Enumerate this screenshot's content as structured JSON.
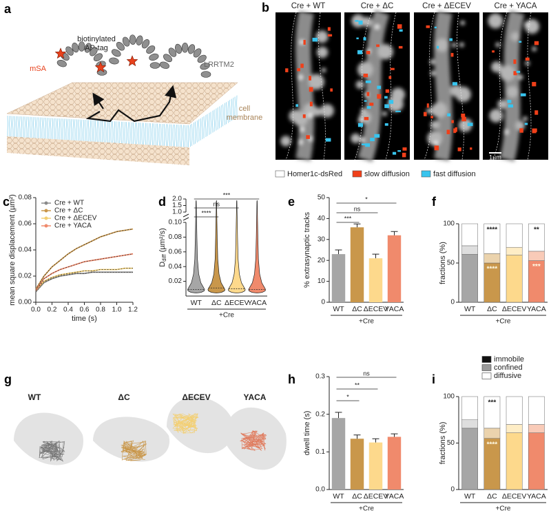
{
  "diagram": {
    "panel": "a",
    "tag": [
      "biotinylated",
      "AP-tag"
    ],
    "msa": "mSA",
    "protein": "LRRTM2",
    "membrane": [
      "cell",
      "membrane"
    ]
  },
  "micrographs": {
    "panel": "b",
    "titles": [
      "Cre + WT",
      "Cre + ΔC",
      "Cre + ΔECEV",
      "Cre + YACA"
    ],
    "legend": [
      "Homer1c-dsRed",
      "slow diffusion",
      "fast diffusion"
    ],
    "scale_bar": "1µm"
  },
  "trajectories": {
    "panel": "g",
    "titles": [
      "WT",
      "ΔC",
      "ΔECEV",
      "YACA"
    ]
  },
  "chart_data": [
    {
      "panel": "c",
      "type": "line",
      "x": [
        0,
        0.1,
        0.2,
        0.3,
        0.4,
        0.5,
        0.6,
        0.7,
        0.8,
        0.9,
        1,
        1.1,
        1.2
      ],
      "series": [
        {
          "name": "Cre + WT",
          "color": "#8a8a8a",
          "values": [
            0.008,
            0.015,
            0.018,
            0.02,
            0.021,
            0.022,
            0.022,
            0.023,
            0.023,
            0.023,
            0.023,
            0.023,
            0.023
          ]
        },
        {
          "name": "Cre + ΔC",
          "color": "#c9974b",
          "values": [
            0.01,
            0.02,
            0.027,
            0.032,
            0.037,
            0.041,
            0.044,
            0.047,
            0.05,
            0.052,
            0.054,
            0.055,
            0.056
          ]
        },
        {
          "name": "Cre + ΔECEV",
          "color": "#f3cf72",
          "values": [
            0.009,
            0.016,
            0.019,
            0.021,
            0.022,
            0.023,
            0.024,
            0.024,
            0.025,
            0.025,
            0.025,
            0.026,
            0.026
          ]
        },
        {
          "name": "Cre + YACA",
          "color": "#f08a6c",
          "values": [
            0.009,
            0.018,
            0.022,
            0.025,
            0.027,
            0.029,
            0.031,
            0.032,
            0.033,
            0.034,
            0.035,
            0.036,
            0.037
          ]
        }
      ],
      "xlim": [
        0,
        1.2
      ],
      "ylim": [
        0,
        0.08
      ],
      "xticks": [
        {
          "value": 0,
          "label": "0.0"
        },
        0.2,
        0.4,
        0.6,
        0.8,
        {
          "value": 1,
          "label": "1.0"
        },
        1.2
      ],
      "yticks": [
        {
          "value": 0,
          "label": "0.00"
        },
        0.02,
        0.04,
        0.06,
        0.08
      ],
      "xlabel": "time (s)",
      "ylabel": "mean square displacement (µm²)",
      "legend": "upper left"
    },
    {
      "panel": "d",
      "type": "violin",
      "categories": [
        "WT",
        "ΔC",
        "ΔECEV",
        "YACA"
      ],
      "group_label": "+Cre",
      "values": [
        0.009,
        0.011,
        0.01,
        0.009
      ],
      "colors": [
        "#a6a6a6",
        "#c9974b",
        "#fdd98c",
        "#f08a6c"
      ],
      "ylim": [
        0,
        0.1
      ],
      "yticks": [
        0.02,
        0.04,
        0.06,
        0.08,
        {
          "value": 0.1,
          "label": "0.10"
        }
      ],
      "ylim_upper": [
        1,
        2
      ],
      "yticks_upper": [
        {
          "value": 1,
          "label": "1.0"
        },
        1.5,
        {
          "value": 2,
          "label": "2.0"
        }
      ],
      "ylabel": {
        "symbol": "D",
        "subscript": "diff",
        "unit": " (µm²/s)"
      },
      "annotations": [
        "****",
        "ns",
        "***"
      ]
    },
    {
      "panel": "e",
      "type": "bar",
      "categories": [
        "WT",
        "ΔC",
        "ΔECEV",
        "YACA"
      ],
      "group_label": "+Cre",
      "values": [
        23,
        35.8,
        21,
        32
      ],
      "errors": [
        2,
        1.6,
        2,
        1.8
      ],
      "colors": [
        "#a6a6a6",
        "#c9974b",
        "#fdd98c",
        "#f08a6c"
      ],
      "ylim": [
        0,
        50
      ],
      "yticks": [
        0,
        10,
        20,
        30,
        40,
        50
      ],
      "ylabel": "% extrasynaptic tracks",
      "annotations": [
        "***",
        "ns",
        "*"
      ]
    },
    {
      "panel": "f",
      "type": "stacked_bar",
      "categories": [
        "WT",
        "ΔC",
        "ΔECEV",
        "YACA"
      ],
      "group_label": "+Cre",
      "series": [
        {
          "colors": [
            "#a6a6a6",
            "#c9974b",
            "#fdd98c",
            "#f08a6c"
          ],
          "values": [
            61,
            50,
            60,
            53
          ]
        },
        {
          "colors": [
            "#dedede",
            "#ebd3ad",
            "#feedc6",
            "#f9cbb8"
          ],
          "values": [
            11,
            12,
            10,
            12
          ]
        },
        {
          "colors": [
            "#ffffff",
            "#ffffff",
            "#ffffff",
            "#ffffff"
          ],
          "values": [
            28,
            38,
            30,
            35
          ]
        }
      ],
      "ylim": [
        0,
        100
      ],
      "yticks": [
        0,
        50,
        100
      ],
      "ylabel": "fractions (%)",
      "top_annotations": [
        null,
        "****",
        null,
        "**"
      ],
      "bottom_annotations": [
        null,
        "****",
        null,
        "***"
      ]
    },
    {
      "panel": "h",
      "type": "bar",
      "categories": [
        "WT",
        "ΔC",
        "ΔECEV",
        "YACA"
      ],
      "group_label": "+Cre",
      "values": [
        0.19,
        0.135,
        0.125,
        0.14
      ],
      "errors": [
        0.015,
        0.01,
        0.01,
        0.008
      ],
      "colors": [
        "#a6a6a6",
        "#c9974b",
        "#fdd98c",
        "#f08a6c"
      ],
      "ylim": [
        0,
        0.3
      ],
      "yticks": [
        {
          "value": 0,
          "label": "0.0"
        },
        0.1,
        0.2,
        0.3
      ],
      "ylabel": "dwell time (s)",
      "annotations": [
        "*",
        "**",
        "ns"
      ]
    },
    {
      "panel": "i",
      "type": "stacked_bar",
      "categories": [
        "WT",
        "ΔC",
        "ΔECEV",
        "YACA"
      ],
      "group_label": "+Cre",
      "series": [
        {
          "name": "immobile",
          "color": "#111111",
          "colors": [
            "#a6a6a6",
            "#c9974b",
            "#fdd98c",
            "#f08a6c"
          ],
          "values": [
            66,
            55,
            61,
            61
          ]
        },
        {
          "name": "confined",
          "color": "#9a9a9a",
          "colors": [
            "#dedede",
            "#ebd3ad",
            "#feedc6",
            "#f9cbb8"
          ],
          "values": [
            9,
            11,
            9,
            9
          ]
        },
        {
          "name": "diffusive",
          "color": "#ffffff",
          "colors": [
            "#ffffff",
            "#ffffff",
            "#ffffff",
            "#ffffff"
          ],
          "values": [
            25,
            34,
            30,
            30
          ]
        }
      ],
      "ylim": [
        0,
        100
      ],
      "yticks": [
        0,
        50,
        100
      ],
      "ylabel": "fractions (%)",
      "legend": "upper right",
      "top_annotations": [
        null,
        "***",
        null,
        null
      ],
      "bottom_annotations": [
        null,
        "****",
        null,
        null
      ]
    }
  ]
}
